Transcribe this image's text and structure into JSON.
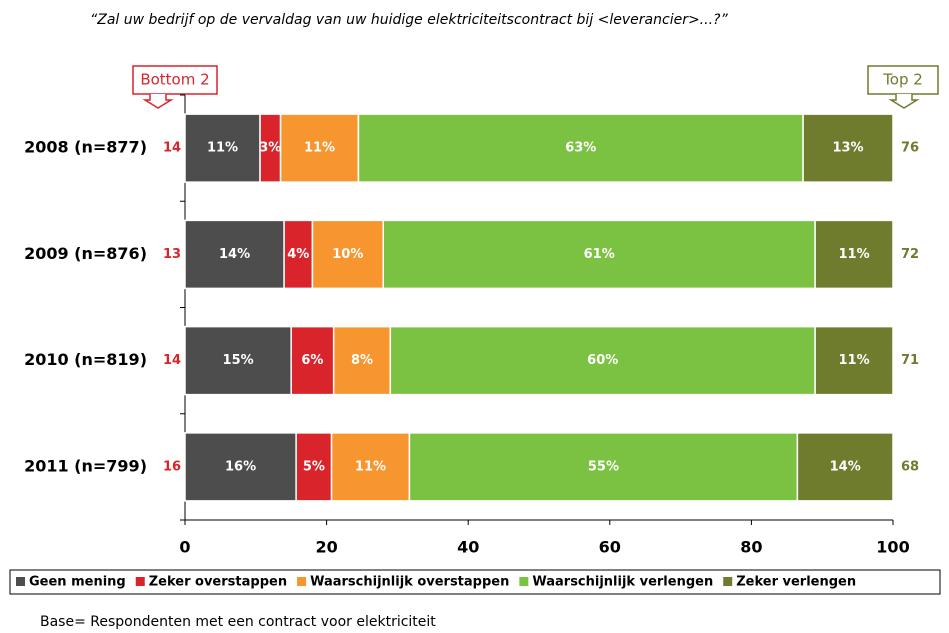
{
  "chart_data": {
    "type": "stacked-barh",
    "title": "“Zal uw bedrijf op de vervaldag van uw huidige elektriciteitscontract bij <leverancier>...?”",
    "categories": [
      "2008 (n=877)",
      "2009 (n=876)",
      "2010 (n=819)",
      "2011 (n=799)"
    ],
    "series": [
      {
        "name": "Geen mening",
        "color": "#4d4d4d",
        "values": [
          10.6,
          14,
          15,
          15.7
        ],
        "value_labels": [
          "11%",
          "14%",
          "15%",
          "16%"
        ]
      },
      {
        "name": "Zeker overstappen",
        "color": "#d9242b",
        "values": [
          2.9,
          4,
          6,
          5
        ],
        "value_labels": [
          "3%",
          "4%",
          "6%",
          "5%"
        ]
      },
      {
        "name": "Waarschijnlijk overstappen",
        "color": "#f7962f",
        "values": [
          11,
          10,
          8,
          11
        ],
        "value_labels": [
          "11%",
          "10%",
          "8%",
          "11%"
        ]
      },
      {
        "name": "Waarschijnlijk verlengen",
        "color": "#7cc242",
        "values": [
          62.8,
          61,
          60,
          54.8
        ],
        "value_labels": [
          "63%",
          "61%",
          "60%",
          "55%"
        ]
      },
      {
        "name": "Zeker verlengen",
        "color": "#6f7c2e",
        "values": [
          12.7,
          11,
          11,
          13.5
        ],
        "value_labels": [
          "13%",
          "11%",
          "11%",
          "14%"
        ]
      }
    ],
    "bottom2": {
      "label": "Bottom 2",
      "color": "#d9242b",
      "values": [
        14,
        13,
        14,
        16
      ]
    },
    "top2": {
      "label": "Top 2",
      "color": "#6f7c2e",
      "values": [
        76,
        72,
        71,
        68
      ]
    },
    "xlim": [
      0,
      100
    ],
    "xticks": [
      0,
      20,
      40,
      60,
      80,
      100
    ],
    "footnote": "Base= Respondenten met een contract voor elektriciteit"
  }
}
